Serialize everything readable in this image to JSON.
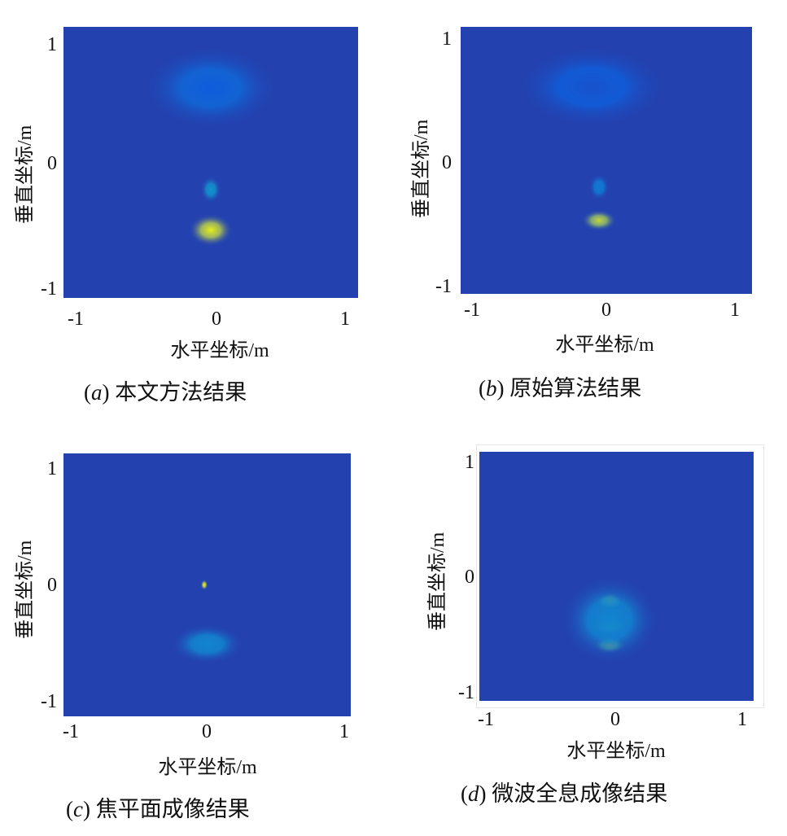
{
  "chart_data": [
    {
      "type": "heatmap",
      "caption_letter": "a",
      "caption_text": "本文方法结果",
      "xlabel": "水平坐标/m",
      "ylabel": "垂直坐标/m",
      "xticks": [
        "-1",
        "0",
        "1"
      ],
      "yticks": [
        "1",
        "0",
        "-1"
      ],
      "xlim": [
        -1,
        1
      ],
      "ylim": [
        -1,
        1
      ],
      "colormap": "parula",
      "hotspots": [
        {
          "x": 0.0,
          "y": 0.55,
          "intensity": 0.25,
          "rx": 0.45,
          "ry": 0.3
        },
        {
          "x": 0.0,
          "y": -0.5,
          "intensity": 0.95,
          "rx": 0.15,
          "ry": 0.12
        },
        {
          "x": 0.0,
          "y": -0.2,
          "intensity": 0.45,
          "rx": 0.07,
          "ry": 0.1
        }
      ]
    },
    {
      "type": "heatmap",
      "caption_letter": "b",
      "caption_text": "原始算法结果",
      "xlabel": "水平坐标/m",
      "ylabel": "垂直坐标/m",
      "xticks": [
        "-1",
        "0",
        "1"
      ],
      "yticks": [
        "1",
        "0",
        "-1"
      ],
      "xlim": [
        -1,
        1
      ],
      "ylim": [
        -1,
        1
      ],
      "colormap": "parula",
      "hotspots": [
        {
          "x": -0.1,
          "y": 0.55,
          "intensity": 0.2,
          "rx": 0.5,
          "ry": 0.3
        },
        {
          "x": -0.05,
          "y": -0.45,
          "intensity": 0.85,
          "rx": 0.12,
          "ry": 0.08
        },
        {
          "x": -0.05,
          "y": -0.2,
          "intensity": 0.35,
          "rx": 0.07,
          "ry": 0.1
        }
      ]
    },
    {
      "type": "heatmap",
      "caption_letter": "c",
      "caption_text": "焦平面成像结果",
      "xlabel": "水平坐标/m",
      "ylabel": "垂直坐标/m",
      "xticks": [
        "-1",
        "0",
        "1"
      ],
      "yticks": [
        "1",
        "0",
        "-1"
      ],
      "xlim": [
        -1,
        1
      ],
      "ylim": [
        -1,
        1
      ],
      "colormap": "parula",
      "hotspots": [
        {
          "x": -0.02,
          "y": 0.0,
          "intensity": 1.0,
          "rx": 0.025,
          "ry": 0.04
        },
        {
          "x": 0.0,
          "y": -0.45,
          "intensity": 0.4,
          "rx": 0.25,
          "ry": 0.15
        }
      ]
    },
    {
      "type": "heatmap",
      "caption_letter": "d",
      "caption_text": "微波全息成像结果",
      "xlabel": "水平坐标/m",
      "ylabel": "垂直坐标/m",
      "xticks": [
        "-1",
        "0",
        "1"
      ],
      "yticks": [
        "1",
        "0",
        "-1"
      ],
      "xlim": [
        -1,
        1
      ],
      "ylim": [
        -1,
        1
      ],
      "colormap": "parula",
      "hotspots": [
        {
          "x": -0.05,
          "y": -0.2,
          "intensity": 0.75,
          "rx": 0.1,
          "ry": 0.07
        },
        {
          "x": -0.05,
          "y": -0.4,
          "intensity": 0.65,
          "rx": 0.12,
          "ry": 0.07
        },
        {
          "x": -0.05,
          "y": -0.55,
          "intensity": 0.7,
          "rx": 0.12,
          "ry": 0.07
        },
        {
          "x": -0.05,
          "y": -0.35,
          "intensity": 0.4,
          "rx": 0.35,
          "ry": 0.35
        }
      ]
    }
  ]
}
